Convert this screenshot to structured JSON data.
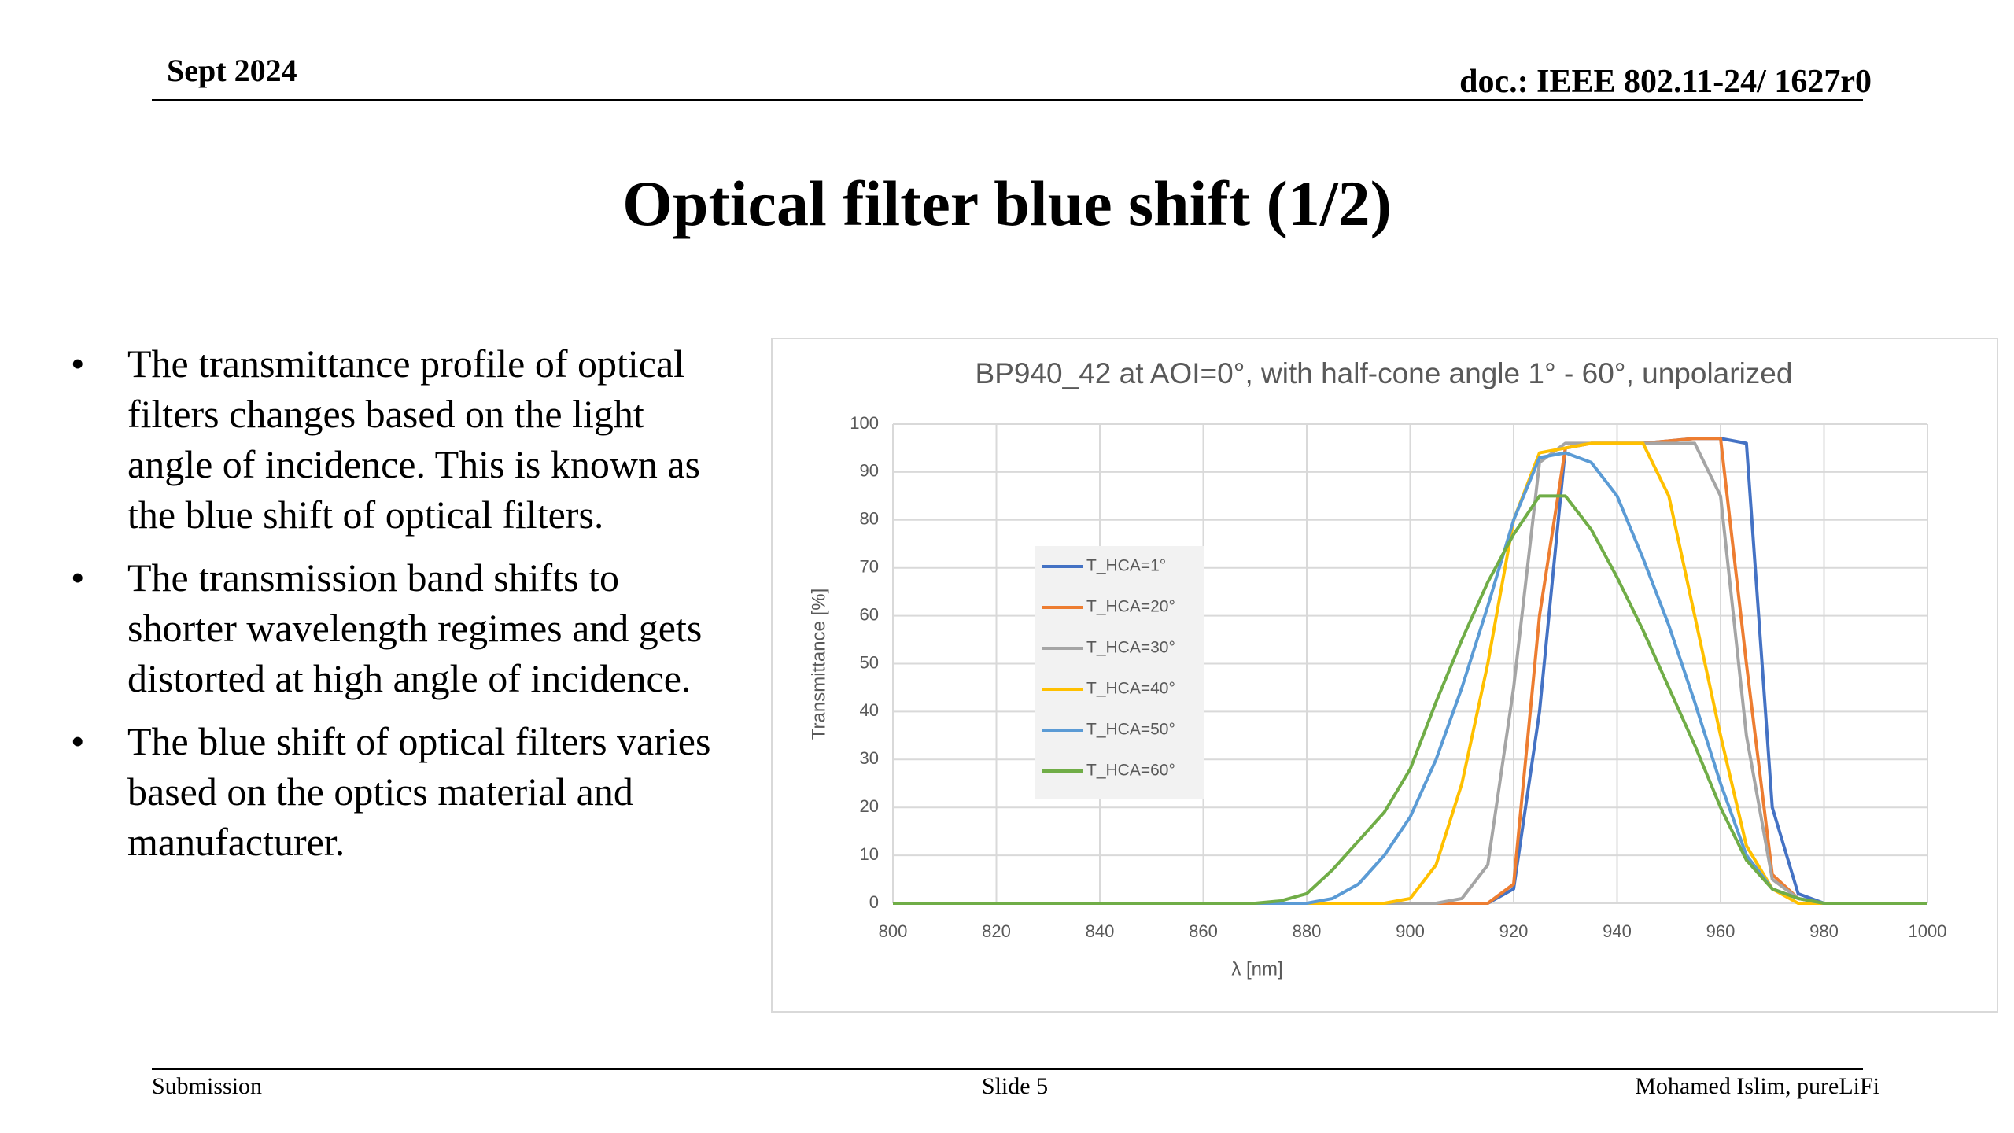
{
  "header": {
    "date": "Sept 2024",
    "doc": "doc.: IEEE 802.11-24/ 1627r0"
  },
  "title": "Optical filter blue shift (1/2)",
  "bullets": [
    "The transmittance profile of optical filters changes based on the light angle of incidence. This is known as the blue shift of optical filters.",
    "The transmission band shifts to shorter wavelength regimes and gets distorted at high angle of incidence.",
    "The blue shift of optical filters varies based on the optics material and manufacturer."
  ],
  "footer": {
    "left": "Submission",
    "center": "Slide 5",
    "right": "Mohamed Islim, pureLiFi"
  },
  "chart_data": {
    "type": "line",
    "title": "BP940_42 at AOI=0°, with half-cone angle 1° - 60°, unpolarized",
    "x_label": "λ [nm]",
    "y_label": "Transmittance [%]",
    "x": [
      800,
      870,
      875,
      880,
      885,
      890,
      895,
      900,
      905,
      910,
      915,
      920,
      925,
      930,
      935,
      940,
      945,
      950,
      955,
      960,
      965,
      970,
      975,
      980,
      985,
      1000
    ],
    "xlim": [
      800,
      1000
    ],
    "xticks": [
      800,
      820,
      840,
      860,
      880,
      900,
      920,
      940,
      960,
      980,
      1000
    ],
    "ylim": [
      0,
      100
    ],
    "yticks": [
      0,
      10,
      20,
      30,
      40,
      50,
      60,
      70,
      80,
      90,
      100
    ],
    "grid": true,
    "legend": "left",
    "series": [
      {
        "name": "T_HCA=1°",
        "color": "#4472c4",
        "values": [
          0,
          0,
          0,
          0,
          0,
          0,
          0,
          0,
          0,
          0,
          0,
          3,
          40,
          95,
          96,
          96,
          96,
          96.5,
          97,
          97,
          96,
          20,
          2,
          0,
          0,
          0
        ]
      },
      {
        "name": "T_HCA=20°",
        "color": "#ed7d31",
        "values": [
          0,
          0,
          0,
          0,
          0,
          0,
          0,
          0,
          0,
          0,
          0,
          4,
          60,
          95,
          96,
          96,
          96,
          96.5,
          97,
          97,
          50,
          6,
          1,
          0,
          0,
          0
        ]
      },
      {
        "name": "T_HCA=30°",
        "color": "#a5a5a5",
        "values": [
          0,
          0,
          0,
          0,
          0,
          0,
          0,
          0,
          0,
          1,
          8,
          45,
          92,
          96,
          96,
          96,
          96,
          96,
          96,
          85,
          35,
          5,
          1,
          0,
          0,
          0
        ]
      },
      {
        "name": "T_HCA=40°",
        "color": "#ffc000",
        "values": [
          0,
          0,
          0,
          0,
          0,
          0,
          0,
          1,
          8,
          25,
          50,
          80,
          94,
          95,
          96,
          96,
          96,
          85,
          60,
          35,
          12,
          3,
          0,
          0,
          0,
          0
        ]
      },
      {
        "name": "T_HCA=50°",
        "color": "#5b9bd5",
        "values": [
          0,
          0,
          0,
          0,
          1,
          4,
          10,
          18,
          30,
          45,
          62,
          80,
          93,
          94,
          92,
          85,
          72,
          58,
          42,
          25,
          10,
          3,
          1,
          0,
          0,
          0
        ]
      },
      {
        "name": "T_HCA=60°",
        "color": "#70ad47",
        "values": [
          0,
          0,
          0.5,
          2,
          7,
          13,
          19,
          28,
          42,
          55,
          67,
          77,
          85,
          85,
          78,
          68,
          57,
          45,
          33,
          20,
          9,
          3,
          1,
          0,
          0,
          0
        ]
      }
    ]
  }
}
